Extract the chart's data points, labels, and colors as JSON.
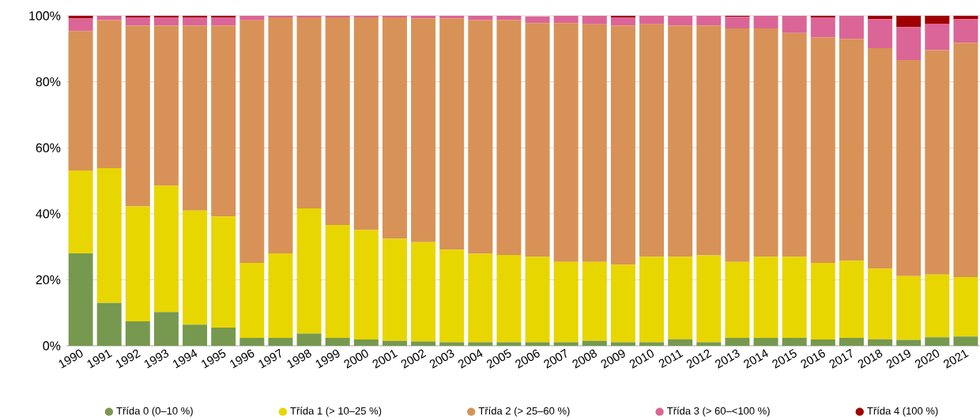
{
  "chart_data": {
    "type": "bar",
    "stacked": true,
    "grid": "y",
    "legend": "bottom",
    "categories": [
      "1990",
      "1991",
      "1992",
      "1993",
      "1994",
      "1995",
      "1996",
      "1997",
      "1998",
      "1999",
      "2000",
      "2001",
      "2002",
      "2003",
      "2004",
      "2005",
      "2006",
      "2007",
      "2008",
      "2009",
      "2010",
      "2011",
      "2012",
      "2013",
      "2014",
      "2015",
      "2016",
      "2017",
      "2018",
      "2019",
      "2020",
      "2021"
    ],
    "ylim": [
      0,
      100
    ],
    "yticks": [
      {
        "value": 0,
        "label": "0%"
      },
      {
        "value": 20,
        "label": "20%"
      },
      {
        "value": 40,
        "label": "40%"
      },
      {
        "value": 60,
        "label": "60%"
      },
      {
        "value": 80,
        "label": "80%"
      },
      {
        "value": 100,
        "label": "100%"
      }
    ],
    "series": [
      {
        "name": "Třída 0 (0–10 %)",
        "color": "#76994f",
        "values": [
          28,
          13,
          7.4,
          10.2,
          6.4,
          5.5,
          2.4,
          2.4,
          3.7,
          2.4,
          1.9,
          1.5,
          1.3,
          1.1,
          1.1,
          1.1,
          1.1,
          1.1,
          1.5,
          1.1,
          1.1,
          2,
          1.1,
          2.4,
          2.4,
          2.4,
          1.9,
          2.4,
          2,
          1.8,
          2.6,
          2.8
        ]
      },
      {
        "name": "Třída 1 (> 10–25 %)",
        "color": "#e8d600",
        "values": [
          25.1,
          40.8,
          34.8,
          38.3,
          34.6,
          33.7,
          22.7,
          25.6,
          37.9,
          34.2,
          33.2,
          30.9,
          30.1,
          28,
          26.8,
          26.4,
          25.9,
          24.3,
          23.9,
          23.5,
          25.9,
          25,
          26.3,
          23,
          24.6,
          24.6,
          23.2,
          23.4,
          21.4,
          19.3,
          19,
          18
        ]
      },
      {
        "name": "Třída 2 (> 25–60 %)",
        "color": "#d89257",
        "values": [
          42.3,
          44.9,
          54.8,
          48.5,
          56,
          57.8,
          73.5,
          71.5,
          57.9,
          62.9,
          64.4,
          67.1,
          67.8,
          70.1,
          70.8,
          71.2,
          70.8,
          72.4,
          72,
          72.4,
          70.4,
          70,
          69.6,
          70.8,
          69.2,
          67.8,
          68.3,
          67.2,
          66.8,
          65.5,
          68,
          71
        ]
      },
      {
        "name": "Třída 3 (> 60–<100 %)",
        "color": "#db6596",
        "values": [
          3.8,
          1.3,
          2.5,
          2.5,
          2.5,
          2.5,
          1.4,
          0.5,
          0.5,
          0.5,
          0.5,
          0.5,
          0.8,
          0.8,
          1.3,
          1.3,
          2,
          2.2,
          2.6,
          2.5,
          2.6,
          3,
          3,
          3.5,
          3.8,
          5.2,
          6.1,
          7,
          8.8,
          10,
          8,
          7.2
        ]
      },
      {
        "name": "Třída 4 (100 %)",
        "color": "#a00000",
        "values": [
          0.8,
          0,
          0.5,
          0.5,
          0.5,
          0.5,
          0,
          0,
          0,
          0,
          0,
          0,
          0,
          0,
          0,
          0,
          0,
          0,
          0,
          0.5,
          0,
          0,
          0,
          0.3,
          0,
          0,
          0.5,
          0,
          1,
          3.4,
          2.4,
          1
        ]
      }
    ]
  }
}
